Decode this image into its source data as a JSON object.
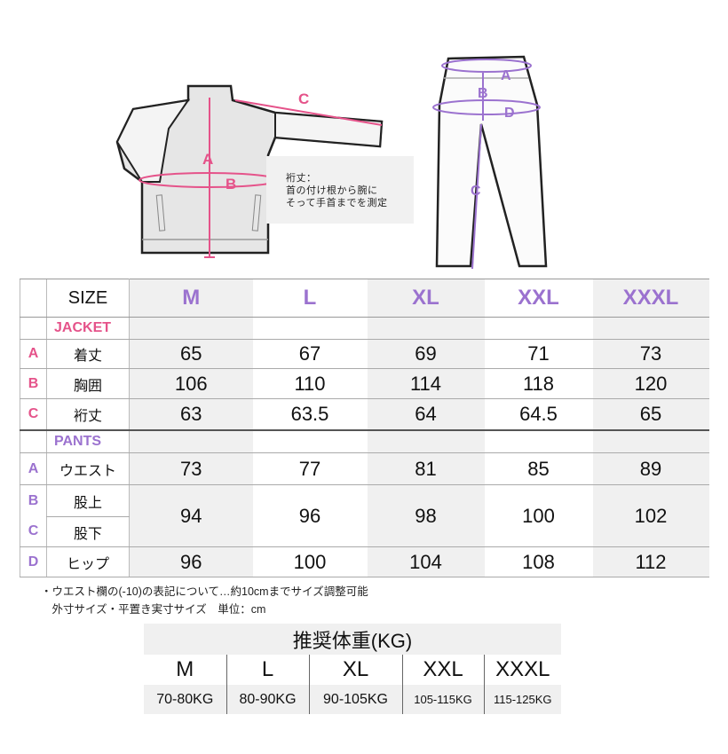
{
  "colors": {
    "jacket_accent": "#e5538a",
    "pants_accent": "#9b72cf"
  },
  "jacket_diagram": {
    "labels": [
      "A",
      "B",
      "C"
    ],
    "note": "裄丈：\n首の付け根から腕に\nそって手首までを測定"
  },
  "pants_diagram": {
    "labels": [
      "A",
      "B",
      "C",
      "D"
    ]
  },
  "size_table": {
    "header_label": "SIZE",
    "sizes": [
      "M",
      "L",
      "XL",
      "XXL",
      "XXXL"
    ],
    "jacket": {
      "title": "JACKET",
      "rows": [
        {
          "letter": "A",
          "label": "着丈",
          "values": [
            "65",
            "67",
            "69",
            "71",
            "73"
          ]
        },
        {
          "letter": "B",
          "label": "胸囲",
          "values": [
            "106",
            "110",
            "114",
            "118",
            "120"
          ]
        },
        {
          "letter": "C",
          "label": "裄丈",
          "values": [
            "63",
            "63.5",
            "64",
            "64.5",
            "65"
          ]
        }
      ]
    },
    "pants": {
      "title": "PANTS",
      "rows": [
        {
          "letter": "A",
          "label": "ウエスト",
          "values": [
            "73",
            "77",
            "81",
            "85",
            "89"
          ]
        },
        {
          "letter": "B",
          "label": "股上"
        },
        {
          "letter": "C",
          "label": "股下"
        },
        {
          "letter": "D",
          "label": "ヒップ",
          "values": [
            "96",
            "100",
            "104",
            "108",
            "112"
          ]
        }
      ],
      "bc_merged_values": [
        "94",
        "96",
        "98",
        "100",
        "102"
      ]
    }
  },
  "notes": [
    "・ウエスト欄の(-10)の表記について…約10cmまでサイズ調整可能",
    "　外寸サイズ・平置き実寸サイズ　単位：cm"
  ],
  "weight_table": {
    "title": "推奨体重(KG)",
    "sizes": [
      "M",
      "L",
      "XL",
      "XXL",
      "XXXL"
    ],
    "values": [
      "70-80KG",
      "80-90KG",
      "90-105KG",
      "105-115KG",
      "115-125KG"
    ]
  }
}
